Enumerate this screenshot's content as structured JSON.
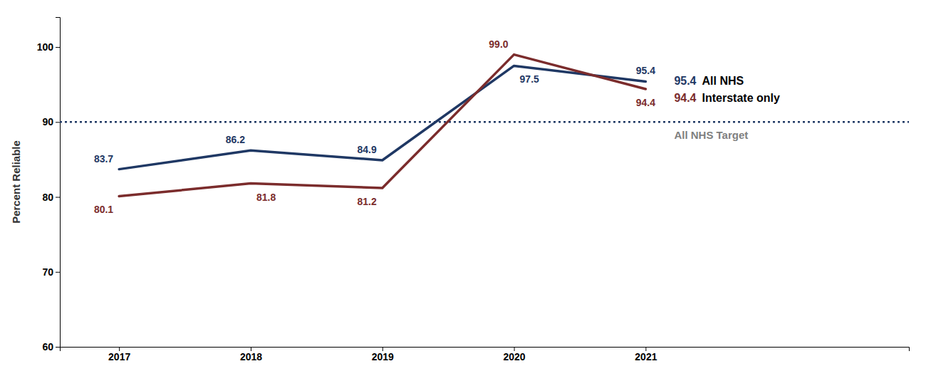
{
  "chart_data": {
    "type": "line",
    "ylabel": "Percent Reliable",
    "x": [
      2017,
      2018,
      2019,
      2020,
      2021
    ],
    "xlim": [
      2016.55,
      2023.0
    ],
    "xticks": [
      2017,
      2018,
      2019,
      2020,
      2021
    ],
    "ylim": [
      60,
      104
    ],
    "yticks": [
      60,
      70,
      80,
      90,
      100
    ],
    "series": [
      {
        "name": "All NHS",
        "color": "#1F3864",
        "values": [
          83.7,
          86.2,
          84.9,
          97.5,
          95.4
        ]
      },
      {
        "name": "Interstate only",
        "color": "#7B2C2C",
        "values": [
          80.1,
          81.8,
          81.2,
          99.0,
          94.4
        ],
        "value_labels": [
          "80.1",
          "81.8",
          "81.2",
          "99.0",
          "94.4"
        ]
      }
    ],
    "reference_lines": [
      {
        "value": 90,
        "label": "All NHS Target",
        "color": "#1F3864",
        "label_color": "#7F7F7F",
        "line_style": "dotted"
      }
    ],
    "data_labels": true,
    "legend": "right",
    "grid": false
  }
}
